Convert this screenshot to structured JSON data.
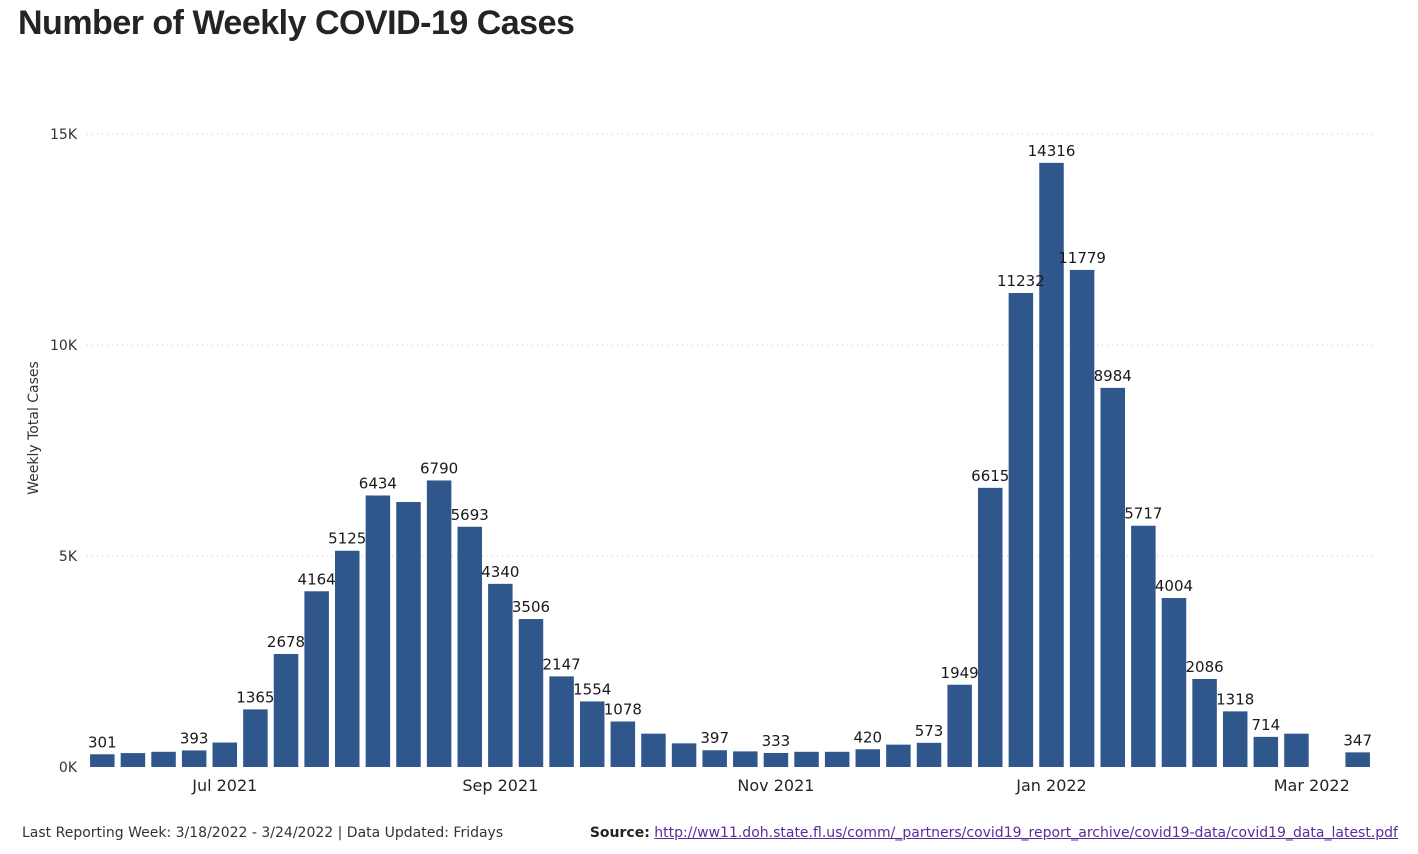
{
  "chart_data": {
    "type": "bar",
    "title": "Number of Weekly COVID-19 Cases",
    "ylabel": "Weekly Total Cases",
    "xlabel": "",
    "ylim": [
      0,
      15000
    ],
    "yticks": [
      {
        "value": 0,
        "label": "0K"
      },
      {
        "value": 5000,
        "label": "5K"
      },
      {
        "value": 10000,
        "label": "10K"
      },
      {
        "value": 15000,
        "label": "15K"
      }
    ],
    "xticks": [
      {
        "index": 4,
        "label": "Jul 2021"
      },
      {
        "index": 13,
        "label": "Sep 2021"
      },
      {
        "index": 22,
        "label": "Nov 2021"
      },
      {
        "index": 31,
        "label": "Jan 2022"
      },
      {
        "index": 39.5,
        "label": "Mar 2022"
      }
    ],
    "grid": true,
    "bar_color": "#2f578c",
    "values": [
      301,
      330,
      360,
      393,
      580,
      1365,
      2678,
      4164,
      5125,
      6434,
      6280,
      6790,
      5693,
      4340,
      3506,
      2147,
      1554,
      1078,
      790,
      560,
      397,
      370,
      333,
      360,
      360,
      420,
      530,
      573,
      1949,
      6615,
      11232,
      14316,
      11779,
      8984,
      5717,
      4004,
      2086,
      1318,
      714,
      790,
      null,
      347
    ],
    "labeled": [
      0,
      3,
      5,
      6,
      7,
      8,
      9,
      11,
      12,
      13,
      14,
      15,
      16,
      17,
      20,
      22,
      25,
      27,
      28,
      29,
      30,
      31,
      32,
      33,
      34,
      35,
      36,
      37,
      38,
      41
    ]
  },
  "footer": {
    "last_week": "Last Reporting Week: 3/18/2022 - 3/24/2022 | Data Updated: Fridays",
    "source_label": "Source:",
    "source_url": "http://ww11.doh.state.fl.us/comm/_partners/covid19_report_archive/covid19-data/covid19_data_latest.pdf"
  }
}
